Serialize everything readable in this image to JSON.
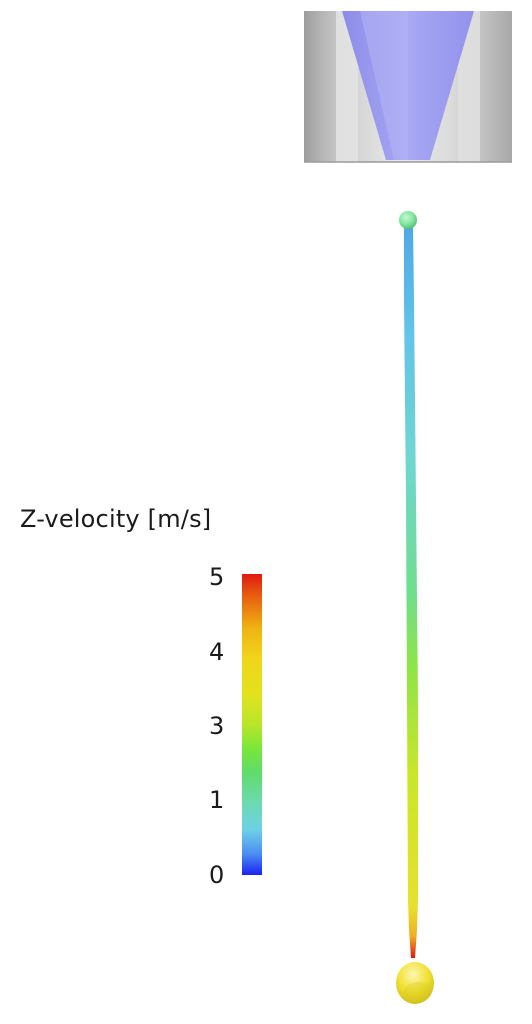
{
  "legend": {
    "title": "Z-velocity [m/s]",
    "ticks": [
      "5",
      "4",
      "3",
      "1",
      "0"
    ],
    "colors": {
      "max": "#e01a10",
      "mid": "#f0d51a",
      "green": "#7ae63b",
      "cyan": "#6fd0e6",
      "min": "#1a23f0"
    }
  },
  "scene": {
    "nozzle_color": "#c8c8c8",
    "nozzle_cone_color": "#9a9af0",
    "filament_gradient": [
      "#6fd0e6",
      "#5fdc6a",
      "#b9e52a",
      "#e2e21e",
      "#e01a10"
    ],
    "top_droplet_color": "#7ae69a",
    "bottom_droplet_color": "#f0e030"
  }
}
